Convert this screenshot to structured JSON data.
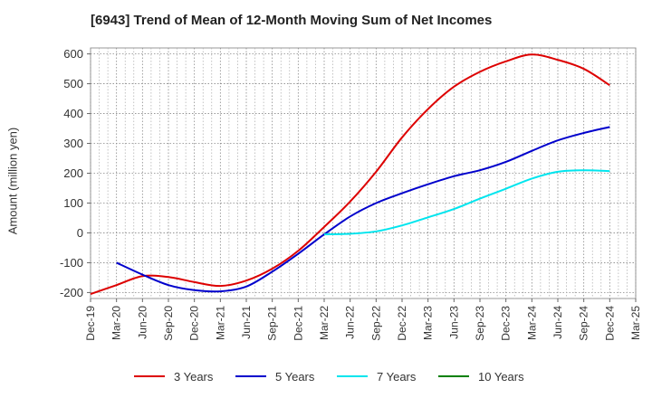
{
  "chart_data": {
    "type": "line",
    "title": "[6943]  Trend of Mean of 12-Month Moving Sum of Net Incomes",
    "ylabel": "Amount (million yen)",
    "xlabel": "",
    "ylim": [
      -220,
      620
    ],
    "yticks": [
      600,
      500,
      400,
      300,
      200,
      100,
      0,
      -100,
      -200
    ],
    "categories": [
      "Dec-19",
      "Mar-20",
      "Jun-20",
      "Sep-20",
      "Dec-20",
      "Mar-21",
      "Jun-21",
      "Sep-21",
      "Dec-21",
      "Mar-22",
      "Jun-22",
      "Sep-22",
      "Dec-22",
      "Mar-23",
      "Jun-23",
      "Sep-23",
      "Dec-23",
      "Mar-24",
      "Jun-24",
      "Sep-24",
      "Dec-24",
      "Mar-25"
    ],
    "grid": true,
    "legend_position": "bottom",
    "series": [
      {
        "name": "3 Years",
        "color": "#dd0000",
        "values": [
          -205,
          -175,
          -145,
          -148,
          -165,
          -178,
          -160,
          -120,
          -60,
          20,
          105,
          205,
          320,
          415,
          490,
          540,
          575,
          598,
          580,
          550,
          495,
          null
        ]
      },
      {
        "name": "5 Years",
        "color": "#0000cc",
        "values": [
          null,
          -100,
          -140,
          -175,
          -192,
          -196,
          -180,
          -130,
          -70,
          -5,
          55,
          100,
          133,
          163,
          190,
          210,
          238,
          275,
          310,
          335,
          355,
          null
        ]
      },
      {
        "name": "7 Years",
        "color": "#00e5ee",
        "values": [
          null,
          null,
          null,
          null,
          null,
          null,
          null,
          null,
          null,
          -5,
          -3,
          5,
          25,
          52,
          80,
          115,
          148,
          182,
          205,
          210,
          207,
          null
        ]
      },
      {
        "name": "10 Years",
        "color": "#008000",
        "values": [
          null,
          null,
          null,
          null,
          null,
          null,
          null,
          null,
          null,
          null,
          null,
          null,
          null,
          null,
          null,
          null,
          null,
          null,
          null,
          null,
          null,
          null
        ]
      }
    ]
  }
}
